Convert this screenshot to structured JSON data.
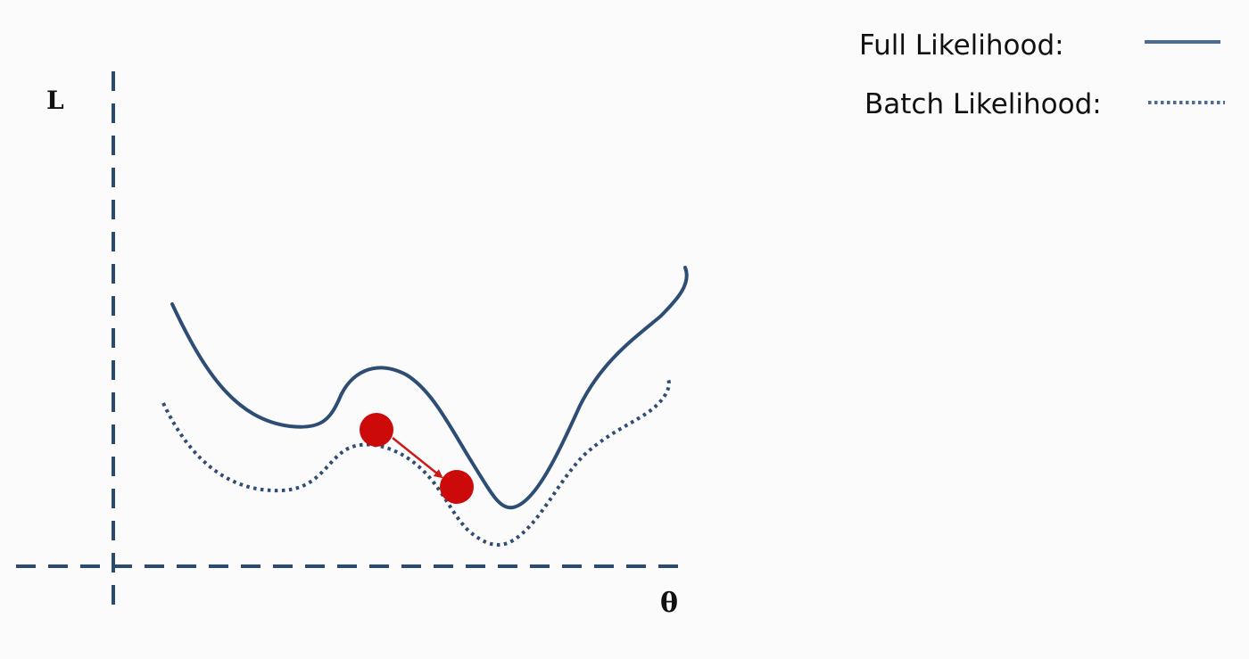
{
  "diagram": {
    "y_axis_label": "L",
    "x_axis_label": "θ",
    "legend": {
      "full_label": "Full Likelihood:",
      "batch_label": "Batch Likelihood:"
    },
    "colors": {
      "axis": "#2b4a70",
      "curve": "#2e4d74",
      "point": "#cc0a0a",
      "arrow": "#cc1a1a",
      "legend_solid": "#4a6c96",
      "legend_dotted": "#4a6c96"
    }
  }
}
